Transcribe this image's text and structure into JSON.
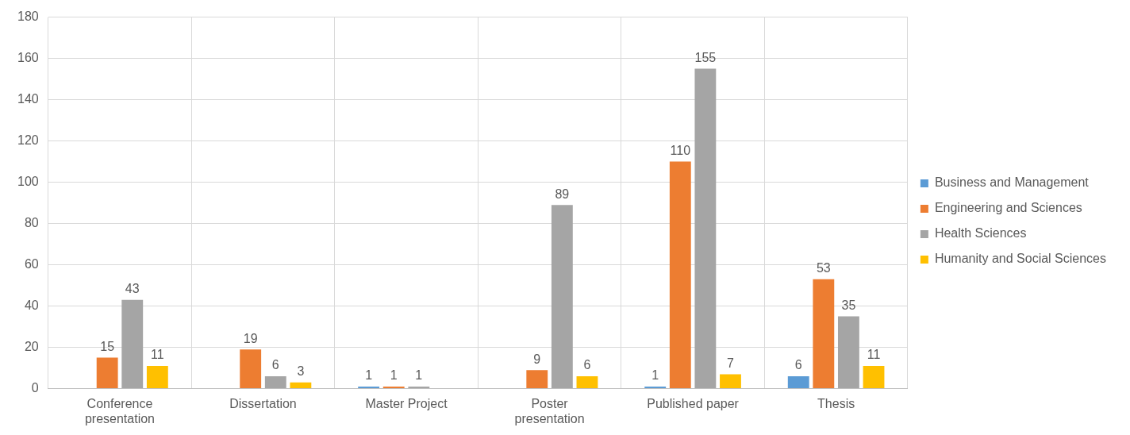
{
  "chart_data": {
    "type": "bar",
    "categories": [
      "Conference presentation",
      "Dissertation",
      "Master Project",
      "Poster presentation",
      "Published paper",
      "Thesis"
    ],
    "series": [
      {
        "name": "Business and Management",
        "color": "#5b9bd5",
        "values": [
          null,
          null,
          1,
          null,
          1,
          6
        ]
      },
      {
        "name": "Engineering and Sciences",
        "color": "#ed7d31",
        "values": [
          15,
          19,
          1,
          9,
          110,
          53
        ]
      },
      {
        "name": "Health Sciences",
        "color": "#a5a5a5",
        "values": [
          43,
          6,
          1,
          89,
          155,
          35
        ]
      },
      {
        "name": "Humanity and Social Sciences",
        "color": "#ffc000",
        "values": [
          11,
          3,
          null,
          6,
          7,
          11
        ]
      }
    ],
    "ylim": [
      0,
      180
    ],
    "yticks": [
      0,
      20,
      40,
      60,
      80,
      100,
      120,
      140,
      160,
      180
    ],
    "grid": true,
    "legend": "right",
    "data_labels": true
  }
}
